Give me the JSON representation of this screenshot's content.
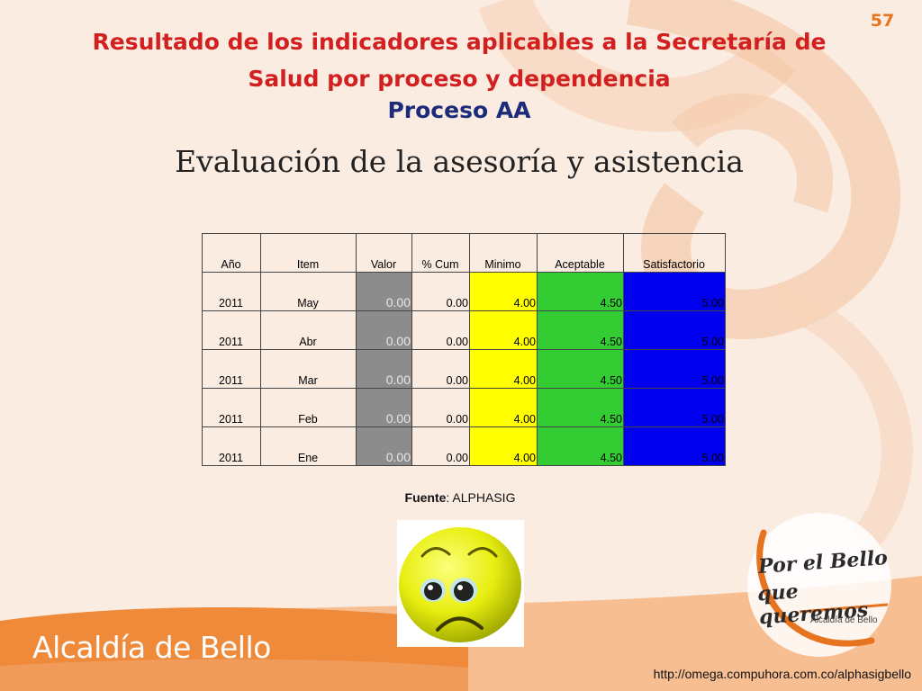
{
  "slide": {
    "page_number": "57",
    "title_line1": "Resultado de los indicadores aplicables a la Secretaría de",
    "title_line2": "Salud por proceso y dependencia",
    "subtitle": "Proceso AA",
    "heading": "Evaluación de la asesoría y asistencia"
  },
  "table": {
    "headers": [
      "Año",
      "Item",
      "Valor",
      "% Cum",
      "Minimo",
      "Aceptable",
      "Satisfactorio"
    ],
    "rows": [
      [
        "2011",
        "May",
        "0.00",
        "0.00",
        "4.00",
        "4.50",
        "5.00"
      ],
      [
        "2011",
        "Abr",
        "0.00",
        "0.00",
        "4.00",
        "4.50",
        "5.00"
      ],
      [
        "2011",
        "Mar",
        "0.00",
        "0.00",
        "4.00",
        "4.50",
        "5.00"
      ],
      [
        "2011",
        "Feb",
        "0.00",
        "0.00",
        "4.00",
        "4.50",
        "5.00"
      ],
      [
        "2011",
        "Ene",
        "0.00",
        "0.00",
        "4.00",
        "4.50",
        "5.00"
      ]
    ]
  },
  "source": {
    "label": "Fuente",
    "value": ": ALPHASIG"
  },
  "footer": {
    "url": "http://omega.compuhora.com.co/alphasigbello",
    "brand": "Alcaldía de Bello"
  },
  "logo": {
    "line1": "Por el Bello",
    "line2": "que queremos",
    "sub": "Alcaldía de Bello"
  },
  "icons": {
    "face": "sad-face-icon"
  },
  "colors": {
    "title": "#d21f1f",
    "subtitle": "#1c2b7a",
    "valor_cell": "#8c8c8c",
    "minimo_cell": "#ffff00",
    "aceptable_cell": "#33cc33",
    "satisfactorio_cell": "#0000ee",
    "accent_orange": "#e8731e"
  }
}
